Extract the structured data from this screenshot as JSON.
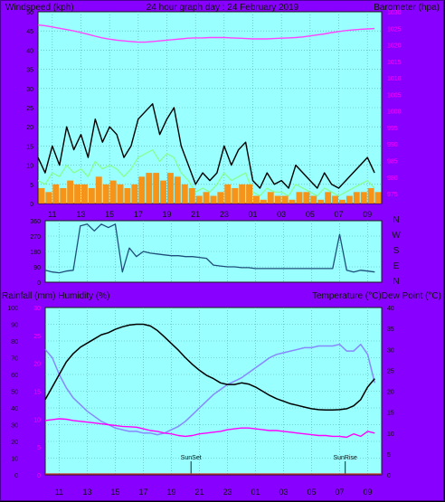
{
  "page": {
    "title": "24 hour graph day : 24 February 2019",
    "x_ticks": [
      "11",
      "13",
      "15",
      "17",
      "19",
      "21",
      "23",
      "01",
      "03",
      "05",
      "07",
      "09"
    ]
  },
  "colors": {
    "frame": "#8800ff",
    "plot_bg": "#99ffff",
    "wind_gust": "#000000",
    "wind_avg": "#ff8800",
    "wind_light": "#88ff88",
    "barometer": "#ff44ff",
    "direction": "#1f4f7a",
    "temperature": "#000000",
    "humidity": "#8888ff",
    "dew_point": "#ff00ff"
  },
  "chart_data": [
    {
      "type": "line",
      "panel": "wind_barometer",
      "left_label": "Windspeed (kph)",
      "right_label": "Barometer (hpa)",
      "y_left_ticks": [
        "50",
        "45",
        "40",
        "35",
        "30",
        "25",
        "20",
        "15",
        "10",
        "5",
        "0"
      ],
      "y_right_ticks": [
        "1030",
        "1025",
        "1020",
        "1015",
        "1010",
        "1005",
        "1000",
        "995",
        "990",
        "985",
        "980",
        "975"
      ],
      "ylim_left": [
        0,
        50
      ],
      "ylim_right": [
        972,
        1030
      ],
      "x_hours": [
        10,
        10.5,
        11,
        11.5,
        12,
        12.5,
        13,
        13.5,
        14,
        14.5,
        15,
        15.5,
        16,
        16.5,
        17,
        17.5,
        18,
        18.5,
        19,
        19.5,
        20,
        20.5,
        21,
        21.5,
        22,
        22.5,
        23,
        23.5,
        24,
        24.5,
        25,
        25.5,
        26,
        26.5,
        27,
        27.5,
        28,
        28.5,
        29,
        29.5,
        30,
        30.5,
        31,
        31.5,
        32,
        32.5,
        33,
        33.5
      ],
      "series": [
        {
          "role": "gust",
          "values": [
            12,
            8,
            15,
            10,
            20,
            14,
            18,
            12,
            22,
            16,
            20,
            18,
            12,
            15,
            22,
            24,
            26,
            18,
            22,
            25,
            15,
            10,
            5,
            8,
            6,
            8,
            15,
            10,
            14,
            16,
            6,
            4,
            8,
            5,
            6,
            4,
            10,
            8,
            6,
            4,
            8,
            5,
            4,
            6,
            8,
            10,
            12,
            8
          ]
        },
        {
          "role": "average",
          "values": [
            4,
            3,
            5,
            4,
            6,
            5,
            5,
            4,
            7,
            5,
            6,
            5,
            4,
            5,
            7,
            8,
            8,
            6,
            8,
            7,
            5,
            4,
            2,
            3,
            2,
            3,
            5,
            4,
            5,
            5,
            2,
            1,
            3,
            2,
            2,
            1,
            3,
            3,
            2,
            1,
            3,
            2,
            1,
            2,
            3,
            3,
            4,
            3
          ]
        },
        {
          "role": "light",
          "values": [
            6,
            5,
            8,
            7,
            10,
            8,
            9,
            7,
            11,
            9,
            10,
            9,
            7,
            9,
            12,
            13,
            14,
            11,
            13,
            12,
            8,
            6,
            3,
            4,
            3,
            5,
            8,
            6,
            7,
            8,
            3,
            2,
            4,
            3,
            3,
            2,
            5,
            4,
            3,
            2,
            4,
            3,
            2,
            3,
            4,
            5,
            6,
            4
          ]
        },
        {
          "role": "barometer_hpa",
          "values": [
            1026,
            1025.8,
            1025.4,
            1025,
            1024.6,
            1024.2,
            1023.7,
            1023.2,
            1022.6,
            1022.1,
            1021.7,
            1021.4,
            1021.2,
            1021,
            1020.8,
            1020.8,
            1021,
            1021.2,
            1021.4,
            1021.6,
            1021.8,
            1022,
            1022.1,
            1022.1,
            1022.2,
            1022.2,
            1022.2,
            1022.1,
            1022,
            1021.9,
            1021.8,
            1021.8,
            1021.8,
            1021.9,
            1022,
            1022.1,
            1022.2,
            1022.4,
            1022.7,
            1023,
            1023.3,
            1023.7,
            1024,
            1024.3,
            1024.5,
            1024.7,
            1024.8,
            1024.9
          ]
        }
      ]
    },
    {
      "type": "line",
      "panel": "wind_direction",
      "right_labels": [
        "N",
        "W",
        "S",
        "E",
        "N"
      ],
      "y_left_ticks": [
        "360",
        "270",
        "180",
        "90",
        "0"
      ],
      "ylim": [
        0,
        360
      ],
      "x_hours": [
        10,
        10.5,
        11,
        11.5,
        12,
        12.5,
        13,
        13.5,
        14,
        14.5,
        15,
        15.5,
        16,
        16.5,
        17,
        17.5,
        18,
        18.5,
        19,
        19.5,
        20,
        20.5,
        21,
        21.5,
        22,
        22.5,
        23,
        23.5,
        24,
        24.5,
        25,
        25.5,
        26,
        26.5,
        27,
        27.5,
        28,
        28.5,
        29,
        29.5,
        30,
        30.5,
        31,
        31.5,
        32,
        32.5,
        33,
        33.5
      ],
      "series": [
        {
          "role": "direction_deg",
          "values": [
            70,
            60,
            55,
            65,
            70,
            330,
            340,
            300,
            340,
            320,
            340,
            60,
            200,
            150,
            180,
            170,
            165,
            160,
            155,
            155,
            150,
            150,
            145,
            140,
            100,
            95,
            90,
            90,
            85,
            85,
            80,
            80,
            80,
            80,
            80,
            80,
            80,
            80,
            80,
            80,
            80,
            80,
            280,
            70,
            60,
            70,
            65,
            60
          ]
        }
      ]
    },
    {
      "type": "line",
      "panel": "temperature_humidity",
      "left_label": "Rainfall (mm)  Humidity (%)",
      "right_label": "Temperature (°C)Dew Point (°C)",
      "y_left_ticks": [
        "100",
        "90",
        "80",
        "70",
        "60",
        "50",
        "40",
        "30",
        "20",
        "10",
        "0"
      ],
      "y_rain_ticks": [
        "30",
        "25",
        "20",
        "15",
        "10",
        "5",
        "0"
      ],
      "y_right_ticks": [
        "40",
        "35",
        "30",
        "25",
        "20",
        "15",
        "10",
        "5",
        "0"
      ],
      "ylim_left": [
        0,
        100
      ],
      "ylim_right": [
        0,
        40
      ],
      "annotations": [
        {
          "label": "SunSet",
          "hour": 20.4
        },
        {
          "label": "SunRise",
          "hour": 31.4
        }
      ],
      "x_hours": [
        10,
        10.5,
        11,
        11.5,
        12,
        12.5,
        13,
        13.5,
        14,
        14.5,
        15,
        15.5,
        16,
        16.5,
        17,
        17.5,
        18,
        18.5,
        19,
        19.5,
        20,
        20.5,
        21,
        21.5,
        22,
        22.5,
        23,
        23.5,
        24,
        24.5,
        25,
        25.5,
        26,
        26.5,
        27,
        27.5,
        28,
        28.5,
        29,
        29.5,
        30,
        30.5,
        31,
        31.5,
        32,
        32.5,
        33,
        33.5
      ],
      "series": [
        {
          "role": "temperature_c",
          "values": [
            18,
            21,
            24,
            27,
            29,
            30.5,
            31.5,
            32.5,
            33.5,
            34,
            34.8,
            35.4,
            35.8,
            36,
            36,
            35.6,
            34.5,
            33,
            31.4,
            29.8,
            28,
            26.4,
            25,
            23.8,
            23,
            22,
            21.6,
            21.6,
            22,
            21.7,
            21,
            20,
            19,
            18.2,
            17.6,
            17,
            16.6,
            16.2,
            15.8,
            15.6,
            15.5,
            15.5,
            15.6,
            15.8,
            16.5,
            18,
            21,
            23
          ]
        },
        {
          "role": "humidity_pct",
          "values": [
            75,
            70,
            60,
            52,
            46,
            42,
            38,
            35,
            32,
            30,
            28,
            27,
            26,
            26,
            25,
            25,
            24,
            25,
            27,
            29,
            32,
            36,
            40,
            44,
            48,
            51,
            54,
            56,
            58,
            61,
            64,
            67,
            70,
            72,
            73,
            74,
            75,
            76,
            76,
            77,
            77,
            77,
            78,
            74,
            74,
            78,
            72,
            55
          ]
        },
        {
          "role": "dew_point_c",
          "values": [
            13,
            13.2,
            13.4,
            13.3,
            13,
            12.8,
            12.6,
            12.4,
            12.2,
            12,
            11.8,
            11.6,
            11.5,
            11.4,
            11,
            10.6,
            10.4,
            10,
            9.8,
            9.4,
            9.2,
            9.4,
            9.8,
            10,
            10.2,
            10.4,
            10.8,
            11,
            11.2,
            11.2,
            11,
            10.8,
            10.6,
            10.6,
            10.4,
            10.2,
            10,
            9.8,
            9.6,
            9.4,
            9.4,
            9.2,
            9.2,
            9,
            9.8,
            9.2,
            10.4,
            10
          ]
        }
      ]
    }
  ]
}
